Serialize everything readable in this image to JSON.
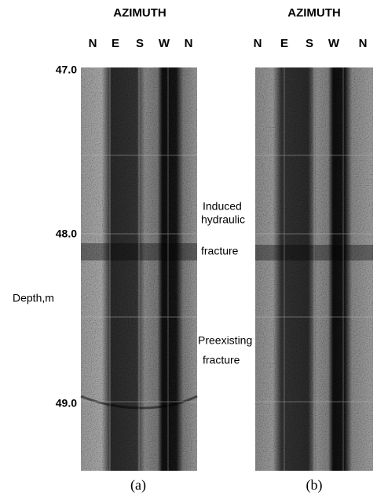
{
  "panels": [
    {
      "title": "AZIMUTH",
      "azimuths": [
        "N",
        "E",
        "S",
        "W",
        "N"
      ],
      "caption": "(a)"
    },
    {
      "title": "AZIMUTH",
      "azimuths": [
        "N",
        "E",
        "S",
        "W",
        "N"
      ],
      "caption": "(b)"
    }
  ],
  "depth_axis": {
    "label": "Depth,m",
    "ticks": [
      "47.0",
      "48.0",
      "49.0"
    ]
  },
  "annotations": [
    {
      "lines": [
        "Induced",
        "hydraulic",
        "fracture"
      ]
    },
    {
      "lines": [
        "Preexisting",
        "fracture"
      ]
    }
  ]
}
